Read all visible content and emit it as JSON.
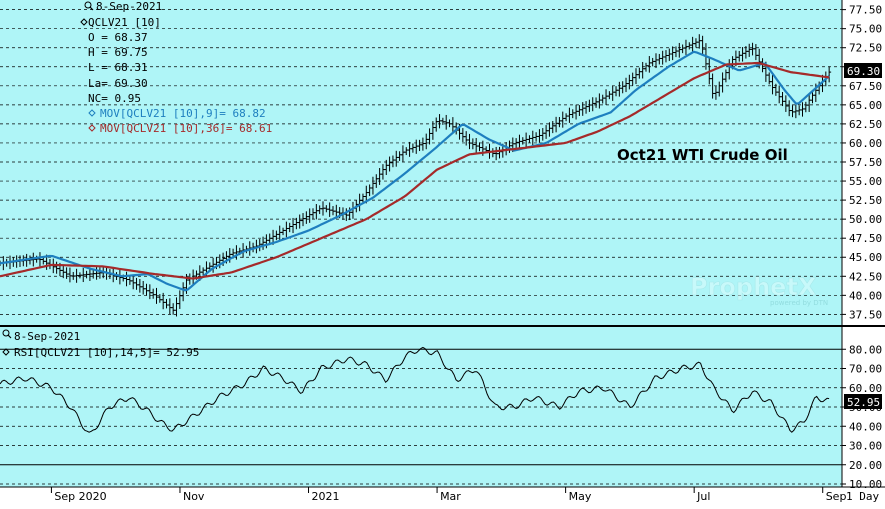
{
  "chart_data": [
    {
      "type": "line",
      "subtype": "ohlc-bar-with-moving-averages",
      "title": "Oct21 WTI Crude Oil",
      "ylim": [
        36.5,
        78.5
      ],
      "y_ticks": [
        "37.50",
        "40.00",
        "42.50",
        "45.00",
        "47.50",
        "50.00",
        "52.50",
        "55.00",
        "57.50",
        "60.00",
        "62.50",
        "65.00",
        "67.50",
        "70.00",
        "72.50",
        "75.00",
        "77.50"
      ],
      "x_ticks": [
        "Sep 2020",
        "Nov",
        "2021",
        "Mar",
        "May",
        "Jul",
        "Sep"
      ],
      "x_ticks_numeric": [
        0,
        2,
        4,
        6,
        8,
        10,
        12
      ],
      "x_range": [
        -0.8,
        12.3
      ],
      "interval_label": "1 Day",
      "last_value_badge": "69.30",
      "grid": true,
      "legend": {
        "date": "8-Sep-2021",
        "symbol": "QCLV21 [10]",
        "open": "O = 68.37",
        "high": "H = 69.75",
        "low": "L = 68.31",
        "last": "La= 69.30",
        "net_change": "NC= 0.95",
        "ma_fast": "MOV[QCLV21 [10],9]= 68.82",
        "ma_slow": "MOV[QCLV21 [10],36]= 68.61"
      },
      "series": [
        {
          "name": "QCLV21 [10]",
          "color": "#000000",
          "x": [
            -0.8,
            -0.2,
            0.3,
            0.8,
            1.2,
            1.6,
            1.9,
            2.1,
            2.5,
            2.8,
            3.2,
            3.6,
            3.9,
            4.2,
            4.6,
            4.9,
            5.2,
            5.5,
            5.8,
            6.0,
            6.2,
            6.5,
            6.9,
            7.2,
            7.6,
            8.0,
            8.5,
            8.9,
            9.3,
            9.7,
            10.1,
            10.3,
            10.6,
            10.9,
            11.2,
            11.5,
            11.7,
            11.9,
            12.1
          ],
          "values": [
            44.2,
            44.8,
            42.5,
            43.0,
            42.0,
            40.0,
            38.0,
            42.0,
            44.0,
            45.5,
            46.5,
            48.5,
            50.0,
            51.5,
            50.5,
            53.5,
            57.0,
            59.0,
            60.0,
            63.0,
            62.5,
            60.0,
            58.5,
            60.0,
            61.0,
            63.5,
            65.5,
            67.5,
            70.5,
            72.0,
            73.5,
            66.0,
            71.0,
            72.5,
            67.5,
            64.0,
            64.5,
            67.0,
            69.3
          ]
        },
        {
          "name": "MOV[QCLV21 [10],9]",
          "color": "#1e7fbf",
          "x": [
            -0.8,
            0.0,
            0.6,
            1.1,
            1.5,
            1.8,
            2.1,
            2.5,
            3.0,
            3.5,
            4.0,
            4.5,
            5.0,
            5.5,
            6.0,
            6.4,
            6.8,
            7.2,
            7.7,
            8.2,
            8.7,
            9.1,
            9.6,
            10.0,
            10.3,
            10.7,
            11.1,
            11.4,
            11.6,
            11.8,
            12.1
          ],
          "values": [
            44.2,
            45.2,
            43.5,
            42.5,
            42.8,
            41.5,
            40.6,
            43.5,
            45.8,
            47.0,
            48.5,
            50.5,
            52.8,
            56.0,
            59.5,
            62.5,
            60.5,
            59.0,
            60.0,
            62.5,
            64.0,
            67.0,
            70.0,
            72.0,
            71.0,
            69.5,
            70.5,
            67.0,
            65.0,
            66.5,
            68.8
          ]
        },
        {
          "name": "MOV[QCLV21 [10],36]",
          "color": "#a52a2a",
          "x": [
            -0.8,
            0.0,
            0.8,
            1.6,
            2.2,
            2.8,
            3.5,
            4.2,
            4.9,
            5.5,
            6.0,
            6.5,
            7.0,
            7.5,
            8.0,
            8.5,
            9.0,
            9.5,
            10.0,
            10.5,
            11.0,
            11.5,
            12.1
          ],
          "values": [
            42.5,
            44.0,
            43.8,
            42.8,
            42.2,
            43.0,
            45.0,
            47.5,
            50.0,
            53.0,
            56.5,
            58.5,
            59.0,
            59.5,
            60.0,
            61.5,
            63.5,
            66.0,
            68.5,
            70.3,
            70.5,
            69.3,
            68.6
          ]
        }
      ]
    },
    {
      "type": "line",
      "ylim": [
        10,
        90
      ],
      "y_ticks": [
        "10.00",
        "20.00",
        "30.00",
        "40.00",
        "50.00",
        "60.00",
        "70.00",
        "80.00"
      ],
      "reference_lines": [
        20,
        80
      ],
      "last_value_badge": "52.95",
      "grid": true,
      "legend": {
        "date": "8-Sep-2021",
        "indicator": "RSI[QCLV21 [10],14,5]= 52.95"
      },
      "series": [
        {
          "name": "RSI[QCLV21 [10],14,5]",
          "color": "#000000",
          "x": [
            -0.8,
            -0.4,
            0.0,
            0.3,
            0.6,
            0.9,
            1.2,
            1.5,
            1.7,
            1.9,
            2.2,
            2.6,
            3.0,
            3.3,
            3.6,
            3.9,
            4.2,
            4.6,
            4.9,
            5.2,
            5.5,
            5.7,
            6.0,
            6.3,
            6.6,
            6.9,
            7.2,
            7.5,
            7.9,
            8.2,
            8.6,
            9.0,
            9.4,
            9.8,
            10.1,
            10.3,
            10.6,
            10.9,
            11.2,
            11.5,
            11.7,
            11.9,
            12.1
          ],
          "values": [
            62,
            65,
            60,
            50,
            35,
            50,
            55,
            48,
            42,
            38,
            45,
            55,
            62,
            70,
            65,
            58,
            70,
            75,
            72,
            64,
            76,
            80,
            78,
            64,
            70,
            50,
            50,
            55,
            50,
            58,
            60,
            50,
            65,
            70,
            72,
            60,
            48,
            58,
            52,
            38,
            42,
            55,
            52.95
          ]
        }
      ]
    }
  ],
  "watermark": {
    "brand": "ProphetX",
    "tag": "powered by DTN"
  },
  "colors": {
    "plot_bg": "#aff5f7",
    "ohlc": "#000000",
    "ma_fast": "#1e7fbf",
    "ma_slow": "#a52a2a",
    "grid": "#000000"
  }
}
